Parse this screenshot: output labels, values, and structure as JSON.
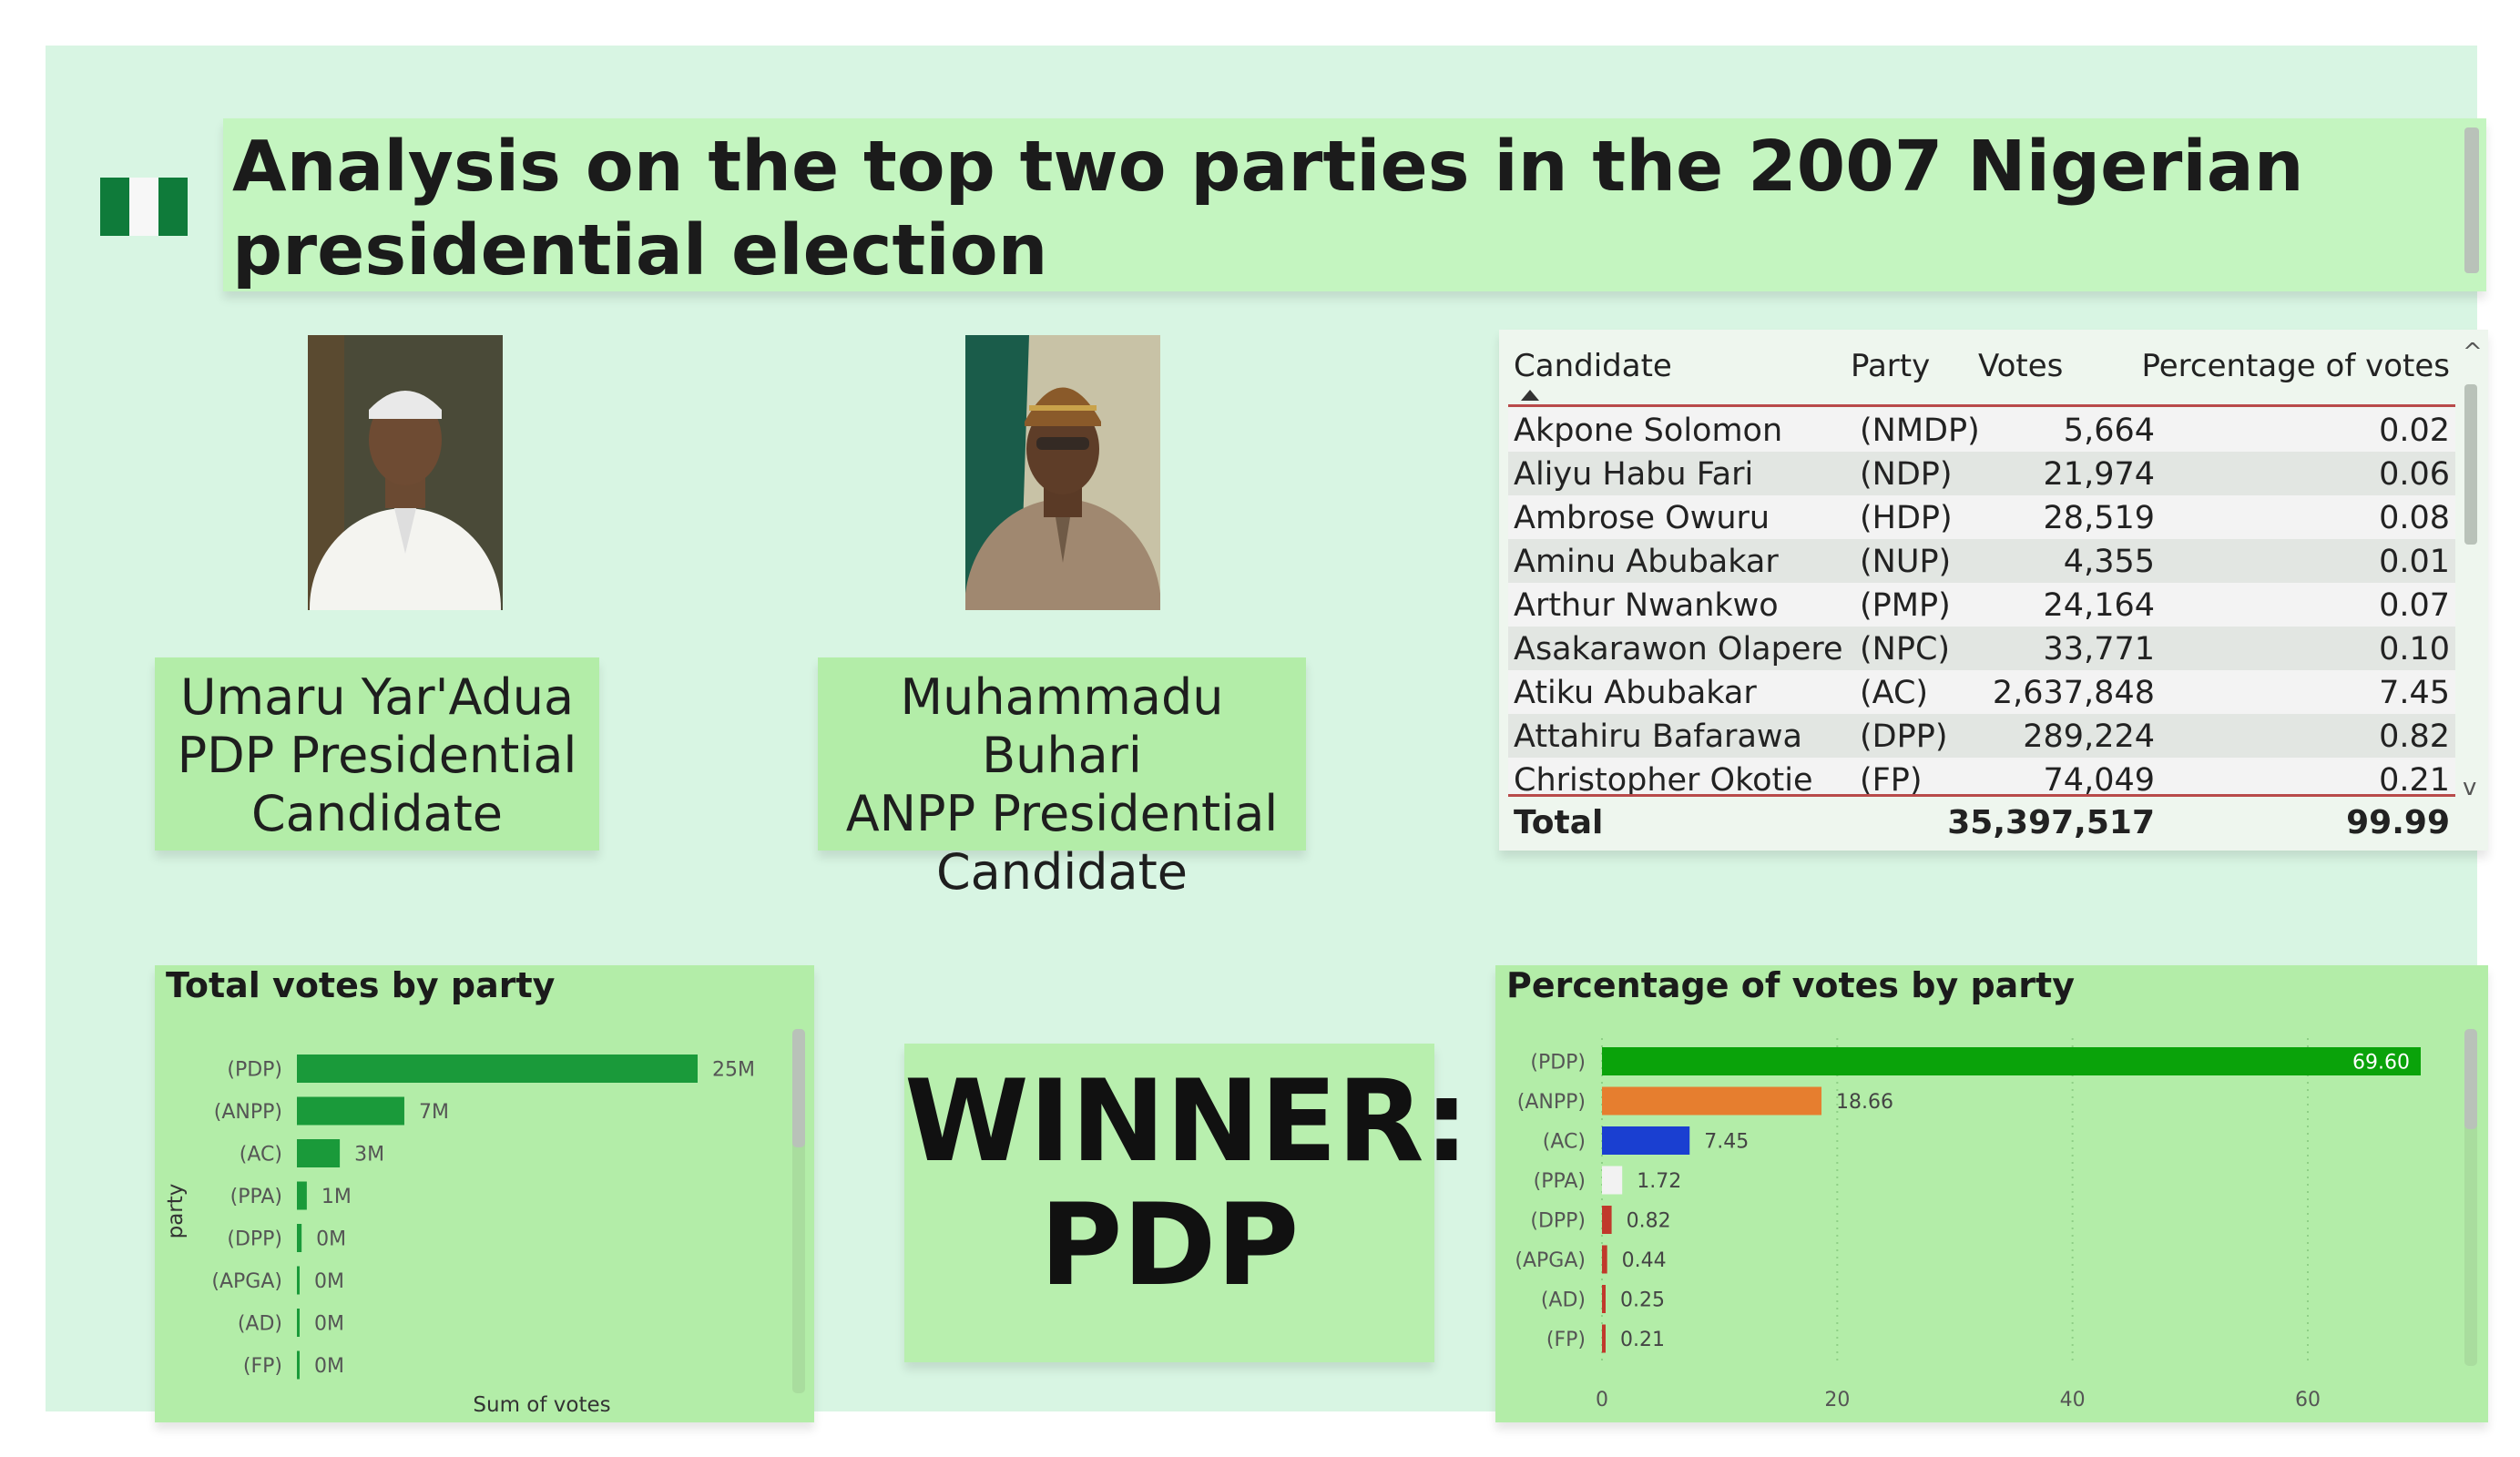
{
  "title": "Analysis on the top two parties in the 2007 Nigerian presidential election",
  "candidates": [
    {
      "line1": "Umaru Yar'Adua",
      "line2": "PDP Presidential",
      "line3": "Candidate"
    },
    {
      "line1": "Muhammadu Buhari",
      "line2": "ANPP Presidential",
      "line3": "Candidate"
    }
  ],
  "table": {
    "headers": {
      "candidate": "Candidate",
      "party": "Party",
      "votes": "Votes",
      "pct": "Percentage of votes"
    },
    "rows": [
      {
        "candidate": "Akpone Solomon",
        "party": "(NMDP)",
        "votes": "5,664",
        "pct": "0.02"
      },
      {
        "candidate": "Aliyu Habu Fari",
        "party": "(NDP)",
        "votes": "21,974",
        "pct": "0.06"
      },
      {
        "candidate": "Ambrose Owuru",
        "party": "(HDP)",
        "votes": "28,519",
        "pct": "0.08"
      },
      {
        "candidate": "Aminu Abubakar",
        "party": "(NUP)",
        "votes": "4,355",
        "pct": "0.01"
      },
      {
        "candidate": "Arthur Nwankwo",
        "party": "(PMP)",
        "votes": "24,164",
        "pct": "0.07"
      },
      {
        "candidate": "Asakarawon Olapere",
        "party": "(NPC)",
        "votes": "33,771",
        "pct": "0.10"
      },
      {
        "candidate": "Atiku Abubakar",
        "party": "(AC)",
        "votes": "2,637,848",
        "pct": "7.45"
      },
      {
        "candidate": "Attahiru Bafarawa",
        "party": "(DPP)",
        "votes": "289,224",
        "pct": "0.82"
      },
      {
        "candidate": "Christopher Okotie",
        "party": "(FP)",
        "votes": "74,049",
        "pct": "0.21"
      }
    ],
    "total": {
      "label": "Total",
      "votes": "35,397,517",
      "pct": "99.99"
    }
  },
  "winner": {
    "line1": "WINNER:",
    "line2": "PDP"
  },
  "scroll": {
    "up": "^",
    "down": "v"
  },
  "chart_data": [
    {
      "type": "bar",
      "orientation": "horizontal",
      "title": "Total votes by party",
      "xlabel": "Sum of votes",
      "ylabel": "party",
      "categories": [
        "(PDP)",
        "(ANPP)",
        "(AC)",
        "(PPA)",
        "(DPP)",
        "(APGA)",
        "(AD)",
        "(FP)"
      ],
      "values": [
        24638063,
        6605299,
        2637848,
        608803,
        289224,
        155947,
        89241,
        74049
      ],
      "data_labels": [
        "25M",
        "7M",
        "3M",
        "1M",
        "0M",
        "0M",
        "0M",
        "0M"
      ],
      "bar_color": "#1a9a3a",
      "grid": false
    },
    {
      "type": "bar",
      "orientation": "horizontal",
      "title": "Percentage of votes by party",
      "xlabel": "",
      "ylabel": "",
      "categories": [
        "(PDP)",
        "(ANPP)",
        "(AC)",
        "(PPA)",
        "(DPP)",
        "(APGA)",
        "(AD)",
        "(FP)"
      ],
      "values": [
        69.6,
        18.66,
        7.45,
        1.72,
        0.82,
        0.44,
        0.25,
        0.21
      ],
      "data_labels": [
        "69.60",
        "18.66",
        "7.45",
        "1.72",
        "0.82",
        "0.44",
        "0.25",
        "0.21"
      ],
      "colors": [
        "#0aa30a",
        "#e67e2f",
        "#1a3fd1",
        "#f2f2f2",
        "#c0392b",
        "#c0392b",
        "#c0392b",
        "#c0392b"
      ],
      "xticks": [
        0,
        20,
        40,
        60
      ],
      "xlim": [
        0,
        72
      ],
      "grid": true
    }
  ]
}
